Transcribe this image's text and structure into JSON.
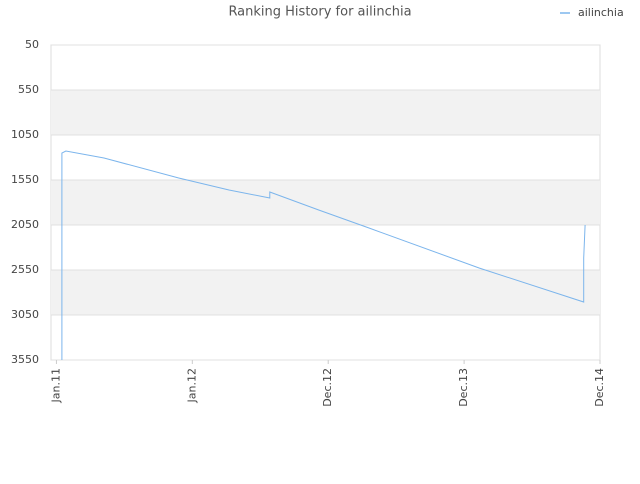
{
  "chart_data": {
    "type": "line",
    "title": "Ranking History for ailinchia",
    "x": [
      0.04,
      0.04,
      0.07,
      0.35,
      0.9,
      1.27,
      1.57,
      1.57,
      1.93,
      2.3,
      3.11,
      3.88,
      3.88,
      3.89
    ],
    "series": [
      {
        "name": "ailinchia",
        "color": "#7cb5ec",
        "values": [
          3550,
          1250,
          1228,
          1306,
          1528,
          1661,
          1750,
          1683,
          1883,
          2083,
          2528,
          2906,
          2417,
          2050
        ]
      }
    ],
    "xlim": [
      -0.04,
      4.0
    ],
    "xticks": [
      {
        "value": 0,
        "label": "Jan.11"
      },
      {
        "value": 1,
        "label": "Jan.12"
      },
      {
        "value": 2,
        "label": "Dec.12"
      },
      {
        "value": 3,
        "label": "Dec.13"
      },
      {
        "value": 4,
        "label": "Dec.14"
      }
    ],
    "ylim": [
      50,
      3550
    ],
    "y_inverted": true,
    "yticks": [
      50,
      550,
      1050,
      1550,
      2050,
      2550,
      3050,
      3550
    ],
    "grid": true,
    "alternate_bands": true,
    "legend": "top-right"
  }
}
